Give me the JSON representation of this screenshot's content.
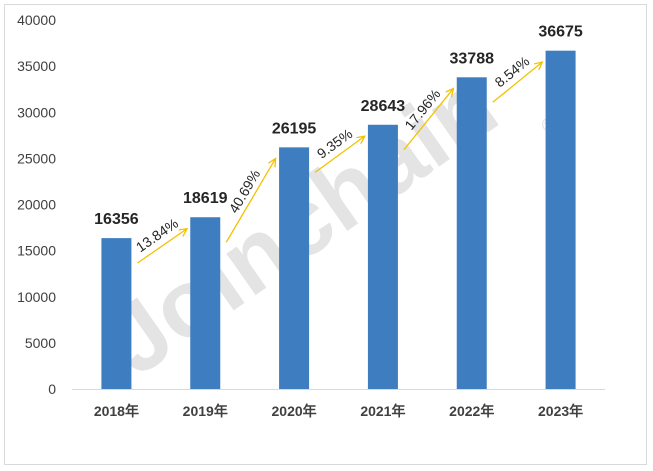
{
  "watermark": {
    "text": "Joinchain",
    "mark": "®"
  },
  "chart_data": {
    "type": "bar",
    "categories": [
      "2018年",
      "2019年",
      "2020年",
      "2021年",
      "2022年",
      "2023年"
    ],
    "values": [
      16356,
      18619,
      26195,
      28643,
      33788,
      36675
    ],
    "value_labels": [
      "16356",
      "18619",
      "26195",
      "28643",
      "33788",
      "36675"
    ],
    "growth_rates": [
      "13.84%",
      "40.69%",
      "9.35%",
      "17.96%",
      "8.54%"
    ],
    "yticks": [
      0,
      5000,
      10000,
      15000,
      20000,
      25000,
      30000,
      35000,
      40000
    ],
    "ylim": [
      0,
      40000
    ],
    "grid": false,
    "legend": "none",
    "title": "",
    "xlabel": "",
    "ylabel": "",
    "bar_color": "#3e7dbf",
    "arrow_color": "#f2c200"
  }
}
